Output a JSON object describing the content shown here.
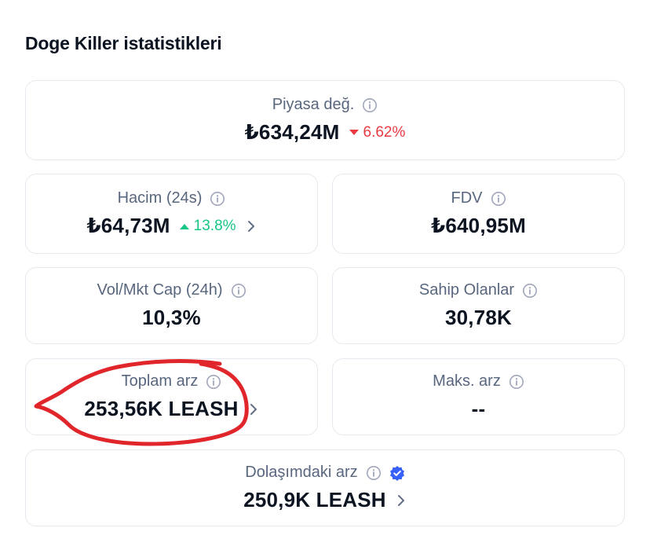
{
  "section": {
    "title": "Doge Killer istatistikleri"
  },
  "stats": {
    "market_cap": {
      "label": "Piyasa değ.",
      "value": "₺634,24M",
      "change": "6.62%",
      "direction": "down"
    },
    "volume": {
      "label": "Hacim (24s)",
      "value": "₺64,73M",
      "change": "13.8%",
      "direction": "up"
    },
    "fdv": {
      "label": "FDV",
      "value": "₺640,95M"
    },
    "vol_mkt_cap": {
      "label": "Vol/Mkt Cap (24h)",
      "value": "10,3%"
    },
    "holders": {
      "label": "Sahip Olanlar",
      "value": "30,78K"
    },
    "total_supply": {
      "label": "Toplam arz",
      "value": "253,56K LEASH"
    },
    "max_supply": {
      "label": "Maks. arz",
      "value": "--"
    },
    "circulating_supply": {
      "label": "Dolaşımdaki arz",
      "value": "250,9K LEASH"
    }
  },
  "colors": {
    "down": "#ea3943",
    "up": "#16c784",
    "label": "#58667e",
    "value": "#0d1421",
    "annotation": "#e0262b",
    "verified": "#3861fb"
  },
  "icons": {
    "info": "info-circle-icon",
    "chevron": "chevron-right-icon",
    "caret_down": "caret-down-icon",
    "caret_up": "caret-up-icon",
    "verified": "verified-badge-icon"
  }
}
